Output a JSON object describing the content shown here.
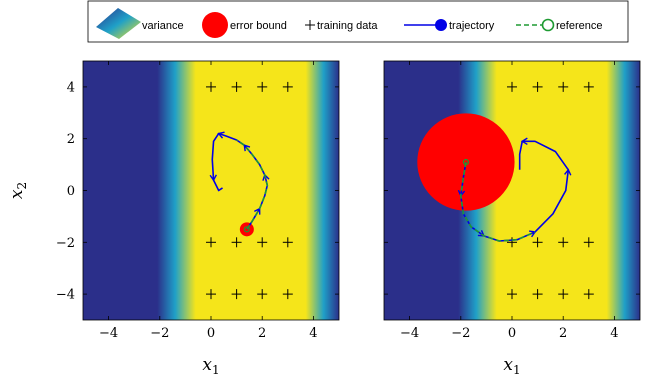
{
  "legend": {
    "entries": [
      {
        "key": "variance",
        "label": "variance"
      },
      {
        "key": "error_bound",
        "label": "error bound"
      },
      {
        "key": "training_data",
        "label": "training data"
      },
      {
        "key": "trajectory",
        "label": "trajectory"
      },
      {
        "key": "reference",
        "label": "reference"
      }
    ],
    "placement": "top-center"
  },
  "colors": {
    "heat_low": "#2b2f8a",
    "heat_mid": "#1fa0c8",
    "heat_high": "#f5e51a",
    "error_bound": "#ff0000",
    "trajectory": "#0000e6",
    "reference": "#1e9a32"
  },
  "chart_data": [
    {
      "type": "heatmap",
      "panel": "left",
      "xlabel": "x1",
      "ylabel": "x2",
      "xlim": [
        -5,
        5
      ],
      "ylim": [
        -5,
        5
      ],
      "xticks": [
        "−4",
        "−2",
        "0",
        "2",
        "4"
      ],
      "yticks": [
        "4",
        "2",
        "0",
        "−2",
        "−4"
      ],
      "variance_band": {
        "high_from": -0.6,
        "high_to": 3.7
      },
      "training_data": {
        "x": [
          0,
          1,
          2,
          3,
          0,
          1,
          2,
          3,
          0,
          1,
          2,
          3
        ],
        "y": [
          4,
          4,
          4,
          4,
          -2,
          -2,
          -2,
          -2,
          -4,
          -4,
          -4,
          -4
        ]
      },
      "error_bound": {
        "center": [
          1.4,
          -1.5
        ],
        "radius": 0.2
      },
      "trajectory": {
        "x": [
          1.4,
          1.6,
          1.9,
          2.1,
          2.2,
          2.1,
          1.9,
          1.6,
          1.3,
          1.0,
          0.6,
          0.3,
          0.1,
          0.05,
          0.1,
          0.3,
          0.45
        ],
        "y": [
          -1.5,
          -1.2,
          -0.7,
          -0.2,
          0.2,
          0.6,
          1.0,
          1.4,
          1.75,
          1.95,
          2.1,
          2.2,
          1.9,
          1.2,
          0.4,
          0.0,
          0.1
        ]
      },
      "reference": {
        "x": [
          1.4,
          1.6,
          1.9,
          2.1,
          2.2,
          2.1,
          1.9,
          1.6,
          1.3,
          1.0
        ],
        "y": [
          -1.5,
          -1.2,
          -0.7,
          -0.2,
          0.2,
          0.6,
          1.0,
          1.4,
          1.75,
          1.95
        ]
      }
    },
    {
      "type": "heatmap",
      "panel": "right",
      "xlabel": "x1",
      "ylabel": "",
      "xlim": [
        -5,
        5
      ],
      "ylim": [
        -5,
        5
      ],
      "xticks": [
        "−4",
        "−2",
        "0",
        "2",
        "4"
      ],
      "yticks": [],
      "variance_band": {
        "high_from": -0.6,
        "high_to": 3.7
      },
      "training_data": {
        "x": [
          0,
          1,
          2,
          3,
          0,
          1,
          2,
          3,
          0,
          1,
          2,
          3
        ],
        "y": [
          4,
          4,
          4,
          4,
          -2,
          -2,
          -2,
          -2,
          -4,
          -4,
          -4,
          -4
        ]
      },
      "error_bound": {
        "center": [
          -1.8,
          1.1
        ],
        "radius": 1.9
      },
      "trajectory": {
        "x": [
          -1.8,
          -1.9,
          -2.0,
          -1.9,
          -1.6,
          -1.1,
          -0.5,
          0.2,
          0.9,
          1.6,
          2.1,
          2.2,
          1.7,
          0.9,
          0.4,
          0.3,
          0.3
        ],
        "y": [
          1.1,
          0.5,
          -0.2,
          -0.9,
          -1.4,
          -1.75,
          -1.95,
          -1.9,
          -1.6,
          -0.9,
          0.0,
          0.8,
          1.5,
          1.9,
          1.9,
          1.4,
          0.8
        ]
      },
      "reference": {
        "x": [
          -1.8,
          -1.9,
          -2.0,
          -1.9,
          -1.6,
          -1.1,
          -0.5,
          0.2,
          0.9
        ],
        "y": [
          1.1,
          0.5,
          -0.2,
          -0.9,
          -1.4,
          -1.75,
          -1.95,
          -1.9,
          -1.6
        ]
      }
    }
  ]
}
